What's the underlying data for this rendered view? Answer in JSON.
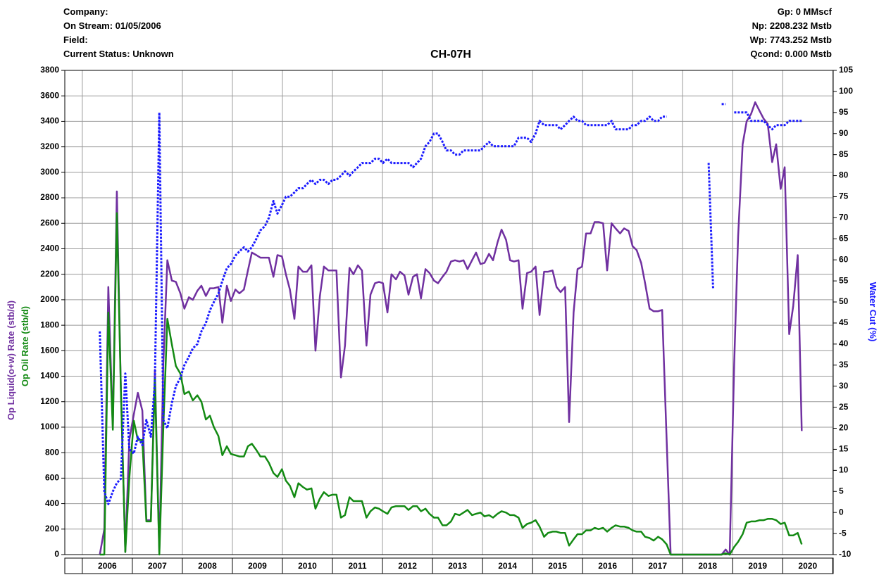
{
  "chart_data": {
    "type": "line",
    "title": "CH-07H",
    "header_left": [
      "Company:",
      "On Stream: 01/05/2006",
      "Field:",
      "Current Status: Unknown"
    ],
    "header_right": [
      "Gp: 0 MMscf",
      "Np: 2208.232 Mstb",
      "Wp: 7743.252 Mstb",
      "Qcond: 0.000 Mstb"
    ],
    "xlim": [
      2005.65,
      2021.01
    ],
    "xticks": [
      {
        "value": 2006.5,
        "label": "2006"
      },
      {
        "value": 2007.5,
        "label": "2007"
      },
      {
        "value": 2008.5,
        "label": "2008"
      },
      {
        "value": 2009.5,
        "label": "2009"
      },
      {
        "value": 2010.5,
        "label": "2010"
      },
      {
        "value": 2011.5,
        "label": "2011"
      },
      {
        "value": 2012.5,
        "label": "2012"
      },
      {
        "value": 2013.5,
        "label": "2013"
      },
      {
        "value": 2014.5,
        "label": "2014"
      },
      {
        "value": 2015.5,
        "label": "2015"
      },
      {
        "value": 2016.5,
        "label": "2016"
      },
      {
        "value": 2017.5,
        "label": "2017"
      },
      {
        "value": 2018.5,
        "label": "2018"
      },
      {
        "value": 2019.5,
        "label": "2019"
      },
      {
        "value": 2020.5,
        "label": "2020"
      }
    ],
    "xgrid": [
      2006,
      2007,
      2008,
      2009,
      2010,
      2011,
      2012,
      2013,
      2014,
      2015,
      2016,
      2017,
      2018,
      2019,
      2020,
      2021
    ],
    "ylim": [
      0,
      3800
    ],
    "yticks": [
      0,
      200,
      400,
      600,
      800,
      1000,
      1200,
      1400,
      1600,
      1800,
      2000,
      2200,
      2400,
      2600,
      2800,
      3000,
      3200,
      3400,
      3600,
      3800
    ],
    "y2lim": [
      -10,
      105
    ],
    "y2ticks": [
      -10,
      -5,
      0,
      5,
      10,
      15,
      20,
      25,
      30,
      35,
      40,
      45,
      50,
      55,
      60,
      65,
      70,
      75,
      80,
      85,
      90,
      95,
      100,
      105
    ],
    "grid": true,
    "x": [
      2006.35,
      2006.44,
      2006.52,
      2006.61,
      2006.69,
      2006.77,
      2006.86,
      2006.94,
      2007.03,
      2007.11,
      2007.2,
      2007.28,
      2007.37,
      2007.45,
      2007.54,
      2007.62,
      2007.7,
      2007.79,
      2007.87,
      2007.96,
      2008.04,
      2008.13,
      2008.21,
      2008.3,
      2008.38,
      2008.47,
      2008.55,
      2008.63,
      2008.72,
      2008.8,
      2008.89,
      2008.97,
      2009.06,
      2009.14,
      2009.23,
      2009.31,
      2009.39,
      2009.48,
      2009.56,
      2009.65,
      2009.73,
      2009.82,
      2009.9,
      2009.99,
      2010.07,
      2010.15,
      2010.24,
      2010.32,
      2010.41,
      2010.49,
      2010.58,
      2010.66,
      2010.75,
      2010.83,
      2010.92,
      2011.0,
      2011.08,
      2011.17,
      2011.25,
      2011.34,
      2011.42,
      2011.51,
      2011.59,
      2011.68,
      2011.76,
      2011.85,
      2011.93,
      2012.01,
      2012.1,
      2012.18,
      2012.27,
      2012.35,
      2012.44,
      2012.52,
      2012.61,
      2012.69,
      2012.77,
      2012.86,
      2012.94,
      2013.03,
      2013.11,
      2013.2,
      2013.28,
      2013.37,
      2013.45,
      2013.54,
      2013.62,
      2013.7,
      2013.79,
      2013.87,
      2013.96,
      2014.04,
      2014.13,
      2014.21,
      2014.3,
      2014.38,
      2014.47,
      2014.55,
      2014.63,
      2014.72,
      2014.8,
      2014.89,
      2014.97,
      2015.06,
      2015.14,
      2015.23,
      2015.31,
      2015.4,
      2015.48,
      2015.56,
      2015.65,
      2015.73,
      2015.82,
      2015.9,
      2015.99,
      2016.07,
      2016.16,
      2016.24,
      2016.32,
      2016.41,
      2016.49,
      2016.58,
      2016.66,
      2016.75,
      2016.83,
      2016.92,
      2017.0,
      2017.08,
      2017.17,
      2017.25,
      2017.34,
      2017.42,
      2017.51,
      2017.59,
      2017.68,
      2017.76,
      2017.85,
      2017.93,
      2018.01,
      2018.1,
      2018.18,
      2018.27,
      2018.35,
      2018.44,
      2018.52,
      2018.61,
      2018.69,
      2018.78,
      2018.86,
      2018.94,
      2019.03,
      2019.11,
      2019.2,
      2019.28,
      2019.37,
      2019.45,
      2019.54,
      2019.62,
      2019.7,
      2019.79,
      2019.87,
      2019.96,
      2020.04,
      2020.13,
      2020.21,
      2020.3,
      2020.38
    ],
    "series": [
      {
        "name": "Op Liquid(o+w) Rate (stb/d)",
        "color": "#7030a0",
        "axis": "y",
        "dash": false,
        "values": [
          0,
          200,
          2100,
          1000,
          2850,
          1300,
          20,
          900,
          1100,
          1270,
          1130,
          270,
          270,
          1450,
          20,
          1500,
          2310,
          2150,
          2140,
          2050,
          1930,
          2020,
          2000,
          2070,
          2110,
          2030,
          2090,
          2090,
          2100,
          1820,
          2110,
          1990,
          2080,
          2050,
          2080,
          2230,
          2370,
          2350,
          2330,
          2330,
          2330,
          2180,
          2350,
          2340,
          2200,
          2080,
          1850,
          2260,
          2220,
          2220,
          2270,
          1600,
          2030,
          2260,
          2230,
          2230,
          2230,
          1390,
          1640,
          2250,
          2200,
          2270,
          2230,
          1640,
          2040,
          2130,
          2140,
          2130,
          1900,
          2200,
          2160,
          2220,
          2190,
          2040,
          2180,
          2200,
          2010,
          2240,
          2210,
          2150,
          2130,
          2180,
          2220,
          2300,
          2310,
          2300,
          2310,
          2240,
          2310,
          2370,
          2280,
          2290,
          2360,
          2310,
          2450,
          2550,
          2470,
          2310,
          2300,
          2310,
          1930,
          2210,
          2220,
          2260,
          1880,
          2220,
          2220,
          2230,
          2100,
          2060,
          2100,
          1040,
          1900,
          2240,
          2260,
          2520,
          2520,
          2610,
          2610,
          2600,
          2230,
          2600,
          2560,
          2520,
          2560,
          2540,
          2420,
          2390,
          2290,
          2130,
          1930,
          1910,
          1910,
          1920,
          900,
          0,
          0,
          0,
          0,
          0,
          0,
          0,
          0,
          0,
          0,
          0,
          0,
          0,
          40,
          0,
          1500,
          2500,
          3220,
          3400,
          3460,
          3550,
          3480,
          3420,
          3380,
          3080,
          3220,
          2870,
          3040,
          1730,
          1950,
          2350,
          970
        ]
      },
      {
        "name": "Op Oil Rate (stb/d)",
        "color": "#138a13",
        "axis": "y",
        "dash": false,
        "values": [
          0,
          0,
          1900,
          980,
          2680,
          1300,
          20,
          600,
          1050,
          900,
          900,
          260,
          260,
          1380,
          0,
          1000,
          1850,
          1650,
          1480,
          1420,
          1260,
          1280,
          1210,
          1250,
          1200,
          1060,
          1090,
          1000,
          930,
          780,
          850,
          790,
          780,
          770,
          770,
          850,
          870,
          820,
          770,
          770,
          720,
          640,
          610,
          670,
          580,
          540,
          450,
          560,
          530,
          510,
          520,
          360,
          440,
          490,
          460,
          470,
          470,
          290,
          310,
          450,
          420,
          420,
          420,
          290,
          340,
          370,
          360,
          340,
          320,
          370,
          380,
          380,
          380,
          350,
          380,
          380,
          340,
          360,
          320,
          290,
          290,
          230,
          230,
          260,
          320,
          310,
          330,
          350,
          310,
          320,
          330,
          300,
          310,
          290,
          320,
          340,
          330,
          310,
          310,
          290,
          210,
          240,
          250,
          270,
          220,
          140,
          170,
          180,
          180,
          170,
          170,
          70,
          120,
          160,
          160,
          190,
          190,
          210,
          200,
          210,
          180,
          210,
          230,
          220,
          220,
          210,
          190,
          180,
          180,
          140,
          130,
          110,
          140,
          120,
          80,
          0,
          0,
          0,
          0,
          0,
          0,
          0,
          0,
          0,
          0,
          0,
          0,
          0,
          10,
          0,
          60,
          100,
          160,
          250,
          260,
          260,
          270,
          270,
          280,
          280,
          270,
          240,
          250,
          150,
          150,
          170,
          80
        ]
      },
      {
        "name": "Water Cut (%)",
        "color": "#1a1aff",
        "axis": "y2",
        "dash": true,
        "values": [
          43,
          5,
          2,
          5,
          7,
          8,
          33,
          15,
          14,
          18,
          16,
          22,
          18,
          31,
          95,
          22,
          20,
          26,
          30,
          32,
          35,
          37,
          39,
          40,
          43,
          45,
          48,
          50,
          52,
          55,
          58,
          59,
          61,
          62,
          63,
          62,
          63,
          65,
          67,
          68,
          70,
          74,
          71,
          73,
          75,
          75,
          76,
          77,
          77,
          78,
          79,
          78,
          79,
          79,
          78,
          79,
          79,
          80,
          81,
          80,
          81,
          82,
          83,
          83,
          83,
          84,
          84,
          83,
          84,
          83,
          83,
          83,
          83,
          83,
          82,
          83,
          84,
          87,
          88,
          90,
          90,
          88,
          86,
          86,
          85,
          85,
          86,
          86,
          86,
          86,
          86,
          87,
          88,
          87,
          87,
          87,
          87,
          87,
          87,
          89,
          89,
          89,
          88,
          90,
          93,
          92,
          92,
          92,
          92,
          91,
          92,
          93,
          94,
          93,
          93,
          92,
          92,
          92,
          92,
          92,
          92,
          93,
          91,
          91,
          91,
          91,
          92,
          92,
          93,
          93,
          94,
          93,
          93,
          94,
          94,
          null,
          null,
          null,
          null,
          null,
          null,
          null,
          null,
          null,
          83,
          53,
          null,
          97,
          97,
          null,
          95,
          95,
          95,
          95,
          93,
          93,
          93,
          93,
          92,
          91,
          92,
          92,
          92,
          93,
          93,
          93,
          93
        ]
      }
    ]
  }
}
